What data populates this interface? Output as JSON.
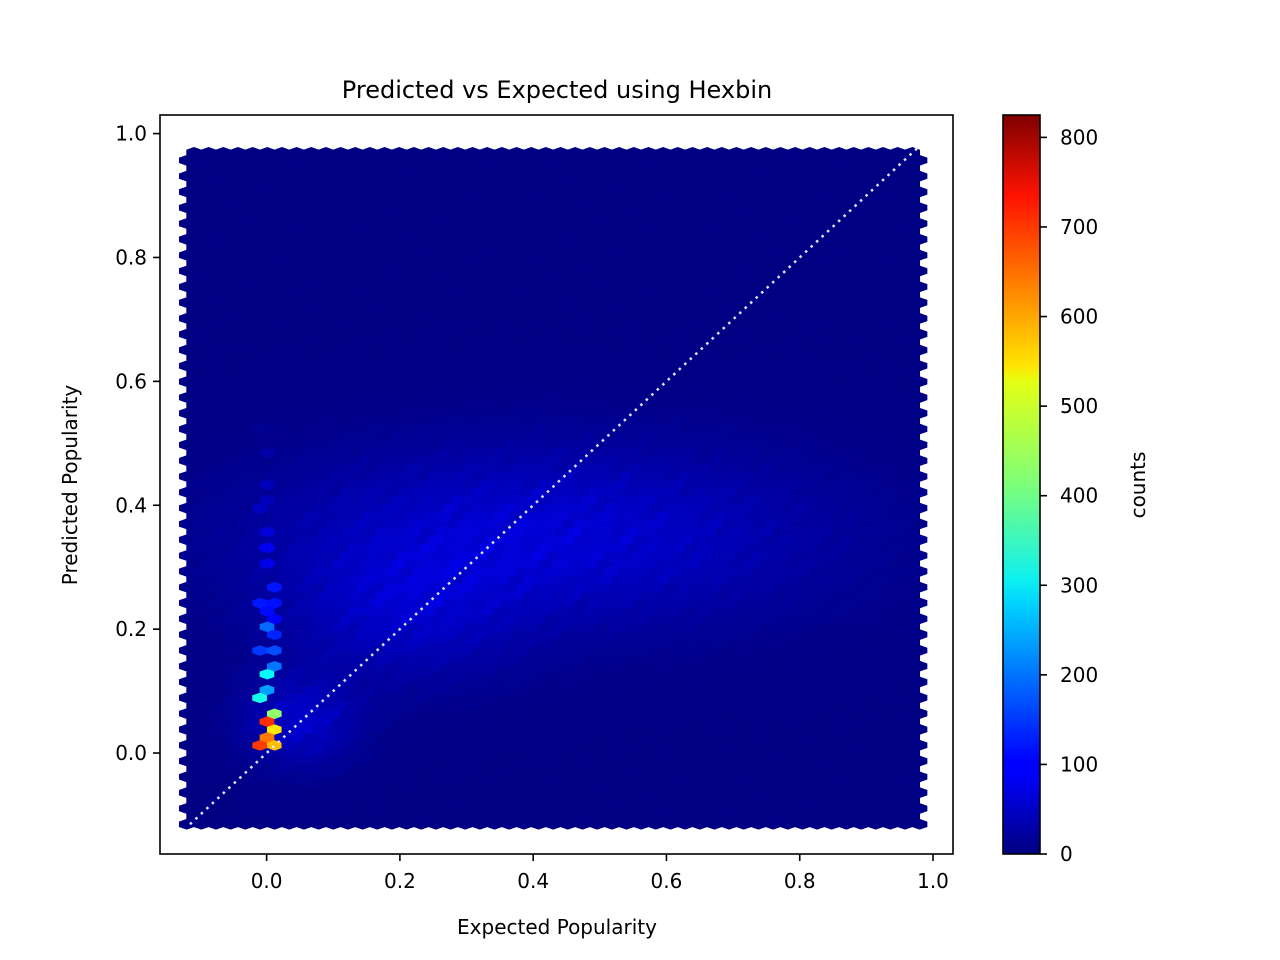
{
  "chart_data": {
    "type": "heatmap",
    "subtype": "hexbin",
    "title": "Predicted vs Expected using Hexbin",
    "xlabel": "Expected Popularity",
    "ylabel": "Predicted Popularity",
    "xlim": [
      -0.16,
      1.03
    ],
    "ylim": [
      -0.163,
      1.03
    ],
    "xticks": [
      0.0,
      0.2,
      0.4,
      0.6,
      0.8,
      1.0
    ],
    "xtick_labels": [
      "0.0",
      "0.2",
      "0.4",
      "0.6",
      "0.8",
      "1.0"
    ],
    "yticks": [
      0.0,
      0.2,
      0.4,
      0.6,
      0.8,
      1.0
    ],
    "ytick_labels": [
      "0.0",
      "0.2",
      "0.4",
      "0.6",
      "0.8",
      "1.0"
    ],
    "hex_extent": {
      "x": [
        -0.12,
        0.98
      ],
      "y": [
        -0.115,
        0.98
      ]
    },
    "gridsize": 50,
    "colormap": "jet",
    "colorbar": {
      "label": "counts",
      "range": [
        0,
        825
      ],
      "ticks": [
        0,
        100,
        200,
        300,
        400,
        500,
        600,
        700,
        800
      ],
      "tick_labels": [
        "0",
        "100",
        "200",
        "300",
        "400",
        "500",
        "600",
        "700",
        "800"
      ]
    },
    "reference_line": {
      "style": "dotted",
      "color": "#dfe6ff",
      "from": [
        -0.115,
        -0.115
      ],
      "to": [
        0.98,
        0.98
      ]
    },
    "hot_bins": [
      {
        "x": 0.0,
        "y": 0.01,
        "count": 820
      },
      {
        "x": 0.01,
        "y": 0.03,
        "count": 820
      },
      {
        "x": 0.0,
        "y": 0.045,
        "count": 810
      },
      {
        "x": 0.01,
        "y": 0.065,
        "count": 380
      },
      {
        "x": 0.0,
        "y": 0.085,
        "count": 420
      },
      {
        "x": 0.01,
        "y": 0.105,
        "count": 270
      },
      {
        "x": 0.0,
        "y": 0.125,
        "count": 320
      },
      {
        "x": 0.01,
        "y": 0.145,
        "count": 230
      },
      {
        "x": 0.0,
        "y": 0.165,
        "count": 210
      },
      {
        "x": 0.01,
        "y": 0.185,
        "count": 190
      },
      {
        "x": 0.0,
        "y": 0.205,
        "count": 170
      },
      {
        "x": 0.01,
        "y": 0.225,
        "count": 150
      },
      {
        "x": 0.0,
        "y": 0.245,
        "count": 160
      },
      {
        "x": 0.01,
        "y": 0.27,
        "count": 120
      },
      {
        "x": 0.0,
        "y": 0.3,
        "count": 100
      },
      {
        "x": 0.0,
        "y": 0.33,
        "count": 90
      },
      {
        "x": 0.0,
        "y": 0.36,
        "count": 80
      },
      {
        "x": 0.0,
        "y": 0.4,
        "count": 70
      },
      {
        "x": 0.0,
        "y": 0.44,
        "count": 55
      },
      {
        "x": 0.0,
        "y": 0.48,
        "count": 35
      },
      {
        "x": 0.0,
        "y": 0.52,
        "count": 20
      }
    ],
    "density_clusters": [
      {
        "center": [
          0.42,
          0.35
        ],
        "spread": [
          0.28,
          0.1
        ],
        "peak_count": 65
      },
      {
        "center": [
          0.2,
          0.22
        ],
        "spread": [
          0.12,
          0.08
        ],
        "peak_count": 40
      },
      {
        "center": [
          0.05,
          0.05
        ],
        "spread": [
          0.06,
          0.05
        ],
        "peak_count": 55
      }
    ]
  }
}
